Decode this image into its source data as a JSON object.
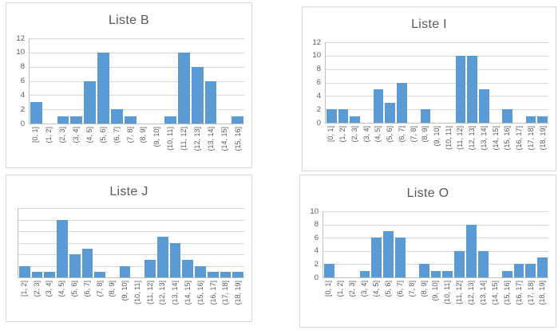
{
  "colors": {
    "bar": "#5B9BD5",
    "gridline": "#D9D9D9",
    "axis_line": "#BFBFBF",
    "text": "#595959",
    "chart_border": "#D9D9D9",
    "background": "#FFFFFF"
  },
  "chart_data": [
    {
      "id": "liste-b",
      "type": "bar",
      "title": "Liste B",
      "categories": [
        "[0, 1]",
        "(1, 2]",
        "(2, 3]",
        "(3, 4]",
        "(4, 5]",
        "(5, 6]",
        "(6, 7]",
        "(7, 8]",
        "(8, 9]",
        "(9, 10]",
        "(10, 11]",
        "(11, 12]",
        "(12, 13]",
        "(13, 14]",
        "(14, 15]",
        "(15, 16]"
      ],
      "values": [
        3,
        0,
        1,
        1,
        6,
        10,
        2,
        1,
        0,
        0,
        1,
        10,
        8,
        6,
        0,
        1
      ],
      "xlabel": "",
      "ylabel": "",
      "ylim": [
        0,
        12
      ],
      "ytick_step": 2,
      "y_tick_labels": [
        "0",
        "2",
        "4",
        "6",
        "8",
        "10",
        "12"
      ],
      "show_y_labels": true,
      "grid": true,
      "legend": "none"
    },
    {
      "id": "liste-i",
      "type": "bar",
      "title": "Liste I",
      "categories": [
        "[0, 1]",
        "(1, 2]",
        "(2, 3]",
        "(3, 4]",
        "(4, 5]",
        "(5, 6]",
        "(6, 7]",
        "(7, 8]",
        "(8, 9]",
        "(9, 10]",
        "(10, 11]",
        "(11, 12]",
        "(12, 13]",
        "(13, 14]",
        "(14, 15]",
        "(15, 16]",
        "(16, 17]",
        "(17, 18]",
        "(18, 19]"
      ],
      "values": [
        2,
        2,
        1,
        0,
        5,
        3,
        6,
        0,
        2,
        0,
        0,
        10,
        10,
        5,
        0,
        2,
        0,
        1,
        1
      ],
      "xlabel": "",
      "ylabel": "",
      "ylim": [
        0,
        12
      ],
      "ytick_step": 2,
      "y_tick_labels": [
        "0",
        "2",
        "4",
        "6",
        "8",
        "10",
        "12"
      ],
      "show_y_labels": true,
      "grid": true,
      "legend": "none"
    },
    {
      "id": "liste-j",
      "type": "bar",
      "title": "Liste J",
      "categories": [
        "[1, 2]",
        "(2, 3]",
        "(3, 4]",
        "(4, 5]",
        "(5, 6]",
        "(6, 7]",
        "(7, 8]",
        "(8, 9]",
        "(9, 10]",
        "(10, 11]",
        "(11, 12]",
        "(12, 13]",
        "(13, 14]",
        "(14, 15]",
        "(15, 16]",
        "(16, 17]",
        "(17, 18]",
        "(18, 19]"
      ],
      "values": [
        2,
        1,
        1,
        10,
        4,
        5,
        1,
        0,
        2,
        0,
        3,
        7,
        6,
        3,
        2,
        1,
        1,
        1
      ],
      "xlabel": "",
      "ylabel": "",
      "ylim": [
        0,
        12
      ],
      "ytick_step": 2,
      "y_tick_labels": [],
      "show_y_labels": false,
      "grid": true,
      "legend": "none"
    },
    {
      "id": "liste-o",
      "type": "bar",
      "title": "Liste O",
      "categories": [
        "[0, 1]",
        "(1, 2]",
        "(2, 3]",
        "(3, 4]",
        "(4, 5]",
        "(5, 6]",
        "(6, 7]",
        "(7, 8]",
        "(8, 9]",
        "(9, 10]",
        "(10, 11]",
        "(11, 12]",
        "(12, 13]",
        "(13, 14]",
        "(14, 15]",
        "(15, 16]",
        "(16, 17]",
        "(17, 18]",
        "(18, 19]"
      ],
      "values": [
        2,
        0,
        0,
        1,
        6,
        7,
        6,
        0,
        2,
        1,
        1,
        4,
        8,
        4,
        0,
        1,
        2,
        2,
        3
      ],
      "xlabel": "",
      "ylabel": "",
      "ylim": [
        0,
        10
      ],
      "ytick_step": 2,
      "y_tick_labels": [
        "0",
        "2",
        "4",
        "6",
        "8",
        "10"
      ],
      "show_y_labels": true,
      "grid": true,
      "legend": "none"
    }
  ]
}
